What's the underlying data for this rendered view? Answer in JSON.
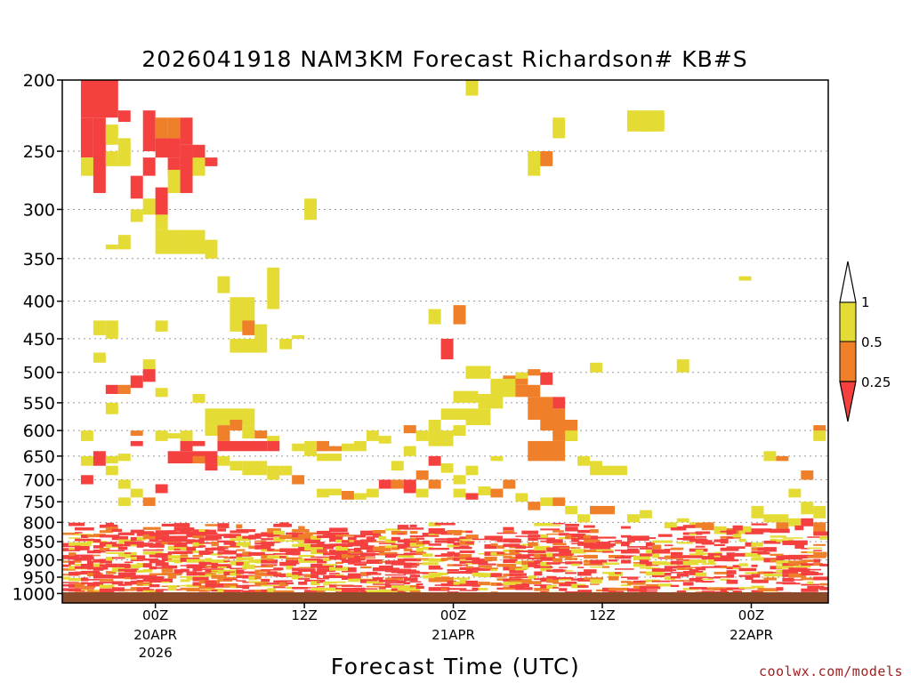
{
  "chart_data": {
    "type": "heatmap",
    "title": "2026041918 NAM3KM Forecast Richardson# KB#S",
    "xlabel": "Forecast Time (UTC)",
    "ylabel": "",
    "x_unit": "forecast hour from 2026-04-19 18Z",
    "xlim": [
      0,
      60
    ],
    "y_ticks": [
      "200",
      "250",
      "300",
      "350",
      "400",
      "450",
      "500",
      "550",
      "600",
      "650",
      "700",
      "750",
      "800",
      "850",
      "900",
      "950",
      "1000"
    ],
    "ylim": [
      200,
      1030
    ],
    "y_scale": "log-pressure (inverted)",
    "x_ticks": [
      {
        "hour": 6,
        "top": "00Z",
        "mid": "20APR",
        "bottom": "2026"
      },
      {
        "hour": 18,
        "top": "12Z",
        "mid": "",
        "bottom": ""
      },
      {
        "hour": 30,
        "top": "00Z",
        "mid": "21APR",
        "bottom": ""
      },
      {
        "hour": 42,
        "top": "12Z",
        "mid": "",
        "bottom": ""
      },
      {
        "hour": 54,
        "top": "00Z",
        "mid": "22APR",
        "bottom": ""
      }
    ],
    "gridlines": "dotted horizontal at pressure ticks",
    "colorbar": {
      "placement": "right",
      "labels": [
        "1",
        "0.5",
        "0.25"
      ],
      "colors": {
        "lt_0.25": "#f54040",
        "0.25_0.5": "#ef7f28",
        "0.5_1": "#e4dc34",
        "gt_1": "#ffffff"
      }
    },
    "ground_color": "#8b4a2a",
    "cell_dx_hours": 1,
    "note_cells": "cells = [hour_start, hour_end, p_top, p_bottom, category] where category 0=<0.25, 1=0.25-0.5, 2=0.5-1",
    "cells": [
      [
        0,
        3,
        200,
        225,
        0
      ],
      [
        0,
        1,
        225,
        255,
        0
      ],
      [
        0,
        1,
        255,
        270,
        2
      ],
      [
        1,
        2,
        225,
        285,
        0
      ],
      [
        2,
        3,
        230,
        245,
        2
      ],
      [
        3,
        4,
        220,
        228,
        0
      ],
      [
        2,
        3,
        250,
        262,
        2
      ],
      [
        3,
        4,
        240,
        262,
        2
      ],
      [
        4,
        5,
        270,
        290,
        0
      ],
      [
        5,
        6,
        290,
        305,
        2
      ],
      [
        4,
        5,
        300,
        312,
        2
      ],
      [
        6,
        7,
        280,
        305,
        0
      ],
      [
        5,
        6,
        255,
        270,
        0
      ],
      [
        5,
        6,
        220,
        250,
        0
      ],
      [
        6,
        7,
        225,
        240,
        1
      ],
      [
        6,
        8,
        240,
        255,
        0
      ],
      [
        7,
        8,
        225,
        240,
        1
      ],
      [
        7,
        8,
        255,
        270,
        0
      ],
      [
        7,
        8,
        265,
        285,
        2
      ],
      [
        8,
        9,
        225,
        245,
        0
      ],
      [
        8,
        9,
        245,
        285,
        0
      ],
      [
        9,
        10,
        245,
        265,
        0
      ],
      [
        9,
        10,
        255,
        270,
        2
      ],
      [
        10,
        11,
        255,
        262,
        0
      ],
      [
        6,
        7,
        305,
        320,
        2
      ],
      [
        6,
        8,
        320,
        345,
        2
      ],
      [
        8,
        10,
        320,
        345,
        2
      ],
      [
        10,
        11,
        330,
        350,
        2
      ],
      [
        2,
        3,
        335,
        340,
        2
      ],
      [
        3,
        4,
        325,
        340,
        2
      ],
      [
        11,
        12,
        370,
        390,
        2
      ],
      [
        12,
        14,
        395,
        440,
        2
      ],
      [
        13,
        14,
        425,
        445,
        1
      ],
      [
        14,
        15,
        430,
        450,
        2
      ],
      [
        15,
        16,
        360,
        410,
        2
      ],
      [
        12,
        15,
        450,
        470,
        2
      ],
      [
        16,
        17,
        450,
        465,
        2
      ],
      [
        17,
        18,
        445,
        450,
        2
      ],
      [
        2,
        3,
        425,
        450,
        2
      ],
      [
        6,
        7,
        425,
        440,
        2
      ],
      [
        1,
        2,
        425,
        445,
        2
      ],
      [
        5,
        6,
        480,
        495,
        2
      ],
      [
        4,
        5,
        505,
        525,
        0
      ],
      [
        5,
        6,
        495,
        515,
        0
      ],
      [
        2,
        3,
        520,
        535,
        0
      ],
      [
        3,
        4,
        520,
        535,
        1
      ],
      [
        6,
        7,
        525,
        540,
        2
      ],
      [
        9,
        10,
        535,
        550,
        2
      ],
      [
        2,
        3,
        550,
        570,
        2
      ],
      [
        10,
        14,
        560,
        590,
        2
      ],
      [
        10,
        11,
        590,
        610,
        2
      ],
      [
        11,
        12,
        590,
        620,
        1
      ],
      [
        12,
        13,
        580,
        600,
        1
      ],
      [
        13,
        14,
        590,
        615,
        2
      ],
      [
        14,
        15,
        600,
        615,
        1
      ],
      [
        15,
        16,
        610,
        625,
        2
      ],
      [
        11,
        15,
        620,
        640,
        0
      ],
      [
        8,
        9,
        600,
        620,
        2
      ],
      [
        7,
        8,
        605,
        615,
        2
      ],
      [
        0,
        1,
        600,
        620,
        2
      ],
      [
        4,
        5,
        600,
        610,
        1
      ],
      [
        4,
        5,
        620,
        630,
        0
      ],
      [
        0,
        1,
        650,
        670,
        2
      ],
      [
        1,
        2,
        640,
        670,
        0
      ],
      [
        2,
        3,
        650,
        665,
        2
      ],
      [
        3,
        4,
        645,
        660,
        2
      ],
      [
        7,
        11,
        640,
        665,
        0
      ],
      [
        9,
        10,
        650,
        665,
        1
      ],
      [
        10,
        11,
        665,
        680,
        0
      ],
      [
        11,
        12,
        650,
        670,
        2
      ],
      [
        12,
        13,
        660,
        680,
        2
      ],
      [
        13,
        15,
        660,
        690,
        2
      ],
      [
        15,
        16,
        670,
        700,
        2
      ],
      [
        16,
        17,
        680,
        690,
        1
      ],
      [
        17,
        18,
        625,
        640,
        2
      ],
      [
        18,
        19,
        620,
        650,
        2
      ],
      [
        19,
        20,
        620,
        640,
        1
      ],
      [
        20,
        21,
        630,
        640,
        1
      ],
      [
        21,
        22,
        625,
        640,
        2
      ],
      [
        22,
        23,
        620,
        640,
        2
      ],
      [
        19,
        21,
        645,
        660,
        2
      ],
      [
        15,
        16,
        620,
        640,
        0
      ],
      [
        23,
        24,
        600,
        620,
        2
      ],
      [
        24,
        25,
        610,
        625,
        2
      ],
      [
        26,
        27,
        590,
        605,
        1
      ],
      [
        28,
        30,
        600,
        630,
        2
      ],
      [
        30,
        31,
        590,
        610,
        2
      ],
      [
        31,
        33,
        560,
        590,
        2
      ],
      [
        32,
        34,
        535,
        560,
        2
      ],
      [
        33,
        35,
        515,
        540,
        2
      ],
      [
        34,
        36,
        505,
        520,
        1
      ],
      [
        35,
        37,
        520,
        540,
        1
      ],
      [
        36,
        38,
        540,
        580,
        1
      ],
      [
        37,
        39,
        560,
        600,
        1
      ],
      [
        38,
        40,
        580,
        620,
        1
      ],
      [
        36,
        39,
        620,
        660,
        1
      ],
      [
        39,
        40,
        600,
        620,
        2
      ],
      [
        40,
        41,
        650,
        670,
        2
      ],
      [
        41,
        42,
        660,
        690,
        2
      ],
      [
        42,
        44,
        670,
        690,
        2
      ],
      [
        35,
        36,
        500,
        510,
        2
      ],
      [
        36,
        37,
        495,
        505,
        1
      ],
      [
        31,
        33,
        490,
        510,
        2
      ],
      [
        33,
        35,
        510,
        530,
        2
      ],
      [
        30,
        32,
        530,
        550,
        2
      ],
      [
        29,
        31,
        560,
        580,
        2
      ],
      [
        28,
        29,
        580,
        600,
        2
      ],
      [
        27,
        28,
        600,
        620,
        2
      ],
      [
        26,
        27,
        630,
        650,
        2
      ],
      [
        25,
        26,
        660,
        680,
        2
      ],
      [
        27,
        28,
        680,
        700,
        1
      ],
      [
        26,
        27,
        700,
        720,
        0
      ],
      [
        28,
        29,
        650,
        670,
        0
      ],
      [
        29,
        30,
        665,
        685,
        2
      ],
      [
        30,
        31,
        690,
        710,
        2
      ],
      [
        31,
        32,
        670,
        690,
        2
      ],
      [
        33,
        34,
        650,
        660,
        2
      ],
      [
        34,
        35,
        700,
        720,
        1
      ],
      [
        37,
        38,
        500,
        520,
        0
      ],
      [
        38,
        39,
        540,
        560,
        0
      ],
      [
        28,
        29,
        410,
        430,
        2
      ],
      [
        30,
        31,
        405,
        430,
        1
      ],
      [
        29,
        30,
        450,
        480,
        0
      ],
      [
        31,
        32,
        200,
        210,
        2
      ],
      [
        36,
        37,
        250,
        270,
        2
      ],
      [
        37,
        38,
        250,
        262,
        1
      ],
      [
        38,
        39,
        225,
        240,
        2
      ],
      [
        44,
        47,
        220,
        235,
        2
      ],
      [
        45,
        46,
        225,
        235,
        2
      ],
      [
        41,
        42,
        485,
        500,
        2
      ],
      [
        48,
        49,
        480,
        500,
        2
      ],
      [
        53,
        54,
        370,
        375,
        2
      ],
      [
        55,
        56,
        640,
        660,
        2
      ],
      [
        56,
        57,
        650,
        660,
        1
      ],
      [
        57,
        58,
        720,
        740,
        2
      ],
      [
        58,
        59,
        680,
        700,
        1
      ],
      [
        59,
        60,
        600,
        620,
        2
      ],
      [
        59,
        60,
        590,
        600,
        1
      ],
      [
        18,
        19,
        290,
        310,
        2
      ],
      [
        1,
        2,
        470,
        485,
        2
      ],
      [
        2,
        3,
        670,
        690,
        2
      ],
      [
        3,
        4,
        700,
        720,
        2
      ],
      [
        4,
        5,
        720,
        740,
        2
      ],
      [
        0,
        1,
        690,
        710,
        0
      ],
      [
        6,
        7,
        710,
        730,
        0
      ],
      [
        5,
        6,
        740,
        760,
        1
      ],
      [
        3,
        4,
        740,
        760,
        2
      ],
      [
        6,
        7,
        600,
        620,
        2
      ],
      [
        8,
        9,
        620,
        640,
        0
      ],
      [
        9,
        10,
        620,
        630,
        0
      ],
      [
        16,
        17,
        670,
        690,
        2
      ],
      [
        17,
        18,
        690,
        710,
        1
      ],
      [
        19,
        20,
        720,
        740,
        2
      ],
      [
        20,
        21,
        720,
        735,
        2
      ],
      [
        21,
        22,
        725,
        745,
        1
      ],
      [
        22,
        23,
        730,
        745,
        2
      ],
      [
        23,
        24,
        720,
        740,
        2
      ],
      [
        24,
        25,
        700,
        720,
        0
      ],
      [
        25,
        26,
        700,
        720,
        1
      ],
      [
        26,
        27,
        710,
        730,
        0
      ],
      [
        27,
        28,
        720,
        740,
        2
      ],
      [
        28,
        29,
        700,
        720,
        1
      ],
      [
        30,
        31,
        720,
        740,
        2
      ],
      [
        31,
        32,
        730,
        745,
        0
      ],
      [
        32,
        33,
        715,
        735,
        2
      ],
      [
        33,
        34,
        720,
        740,
        1
      ],
      [
        35,
        36,
        730,
        750,
        2
      ],
      [
        36,
        37,
        750,
        770,
        1
      ],
      [
        37,
        38,
        740,
        760,
        2
      ],
      [
        38,
        39,
        740,
        760,
        1
      ],
      [
        39,
        40,
        760,
        780,
        2
      ],
      [
        40,
        41,
        780,
        800,
        2
      ],
      [
        41,
        43,
        760,
        780,
        1
      ],
      [
        44,
        45,
        780,
        800,
        2
      ],
      [
        45,
        46,
        770,
        790,
        2
      ],
      [
        47,
        48,
        800,
        815,
        2
      ],
      [
        48,
        49,
        790,
        800,
        2
      ],
      [
        49,
        50,
        800,
        810,
        2
      ],
      [
        50,
        51,
        800,
        820,
        1
      ],
      [
        51,
        52,
        810,
        830,
        2
      ],
      [
        52,
        53,
        815,
        830,
        1
      ],
      [
        53,
        54,
        810,
        830,
        2
      ],
      [
        54,
        55,
        760,
        790,
        2
      ],
      [
        55,
        57,
        780,
        800,
        2
      ],
      [
        56,
        57,
        800,
        820,
        1
      ],
      [
        57,
        58,
        790,
        810,
        2
      ],
      [
        58,
        59,
        790,
        810,
        0
      ],
      [
        59,
        60,
        800,
        830,
        1
      ],
      [
        58,
        59,
        750,
        780,
        2
      ],
      [
        59,
        60,
        760,
        790,
        2
      ]
    ],
    "low_level_band": "dense mixed categories between 800 and 1015 hPa across all hours"
  }
}
